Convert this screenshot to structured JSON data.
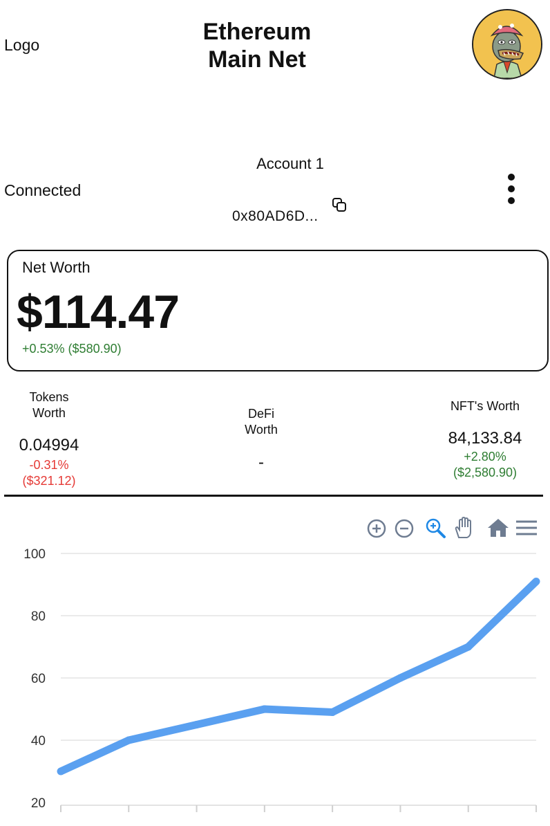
{
  "header": {
    "logo_text": "Logo",
    "network_line1": "Ethereum",
    "network_line2": "Main Net",
    "avatar_icon": "ape-avatar-icon"
  },
  "account": {
    "status": "Connected",
    "name": "Account 1",
    "address": "0x80AD6D...",
    "copy_icon": "copy-icon",
    "menu_icon": "more-vertical-icon"
  },
  "net_worth": {
    "label": "Net Worth",
    "value": "$114.47",
    "change": "+0.53% ($580.90)"
  },
  "stats": {
    "tokens": {
      "title_line1": "Tokens",
      "title_line2": "Worth",
      "value": "0.04994",
      "change_pct": "-0.31%",
      "change_abs": "($321.12)"
    },
    "defi": {
      "title_line1": "DeFi",
      "title_line2": "Worth",
      "value": "-"
    },
    "nfts": {
      "title": "NFT's Worth",
      "value": "84,133.84",
      "change_pct": "+2.80%",
      "change_abs": "($2,580.90)"
    }
  },
  "toolbar": {
    "icons": [
      "zoom-in-icon",
      "zoom-out-icon",
      "zoom-selection-icon",
      "pan-hand-icon",
      "home-reset-icon",
      "menu-icon"
    ]
  },
  "colors": {
    "line": "#5aa0f0",
    "positive": "#2e7d32",
    "negative": "#e53935",
    "toolbar_active": "#1e88e5",
    "toolbar_inactive": "#6e7c91"
  },
  "chart_data": {
    "type": "line",
    "y_ticks": [
      "100",
      "80",
      "60",
      "40",
      "20"
    ],
    "ylim": [
      20,
      100
    ],
    "grid": true,
    "series": [
      {
        "values": [
          30,
          40,
          45,
          50,
          49,
          60,
          70,
          91
        ]
      }
    ]
  }
}
